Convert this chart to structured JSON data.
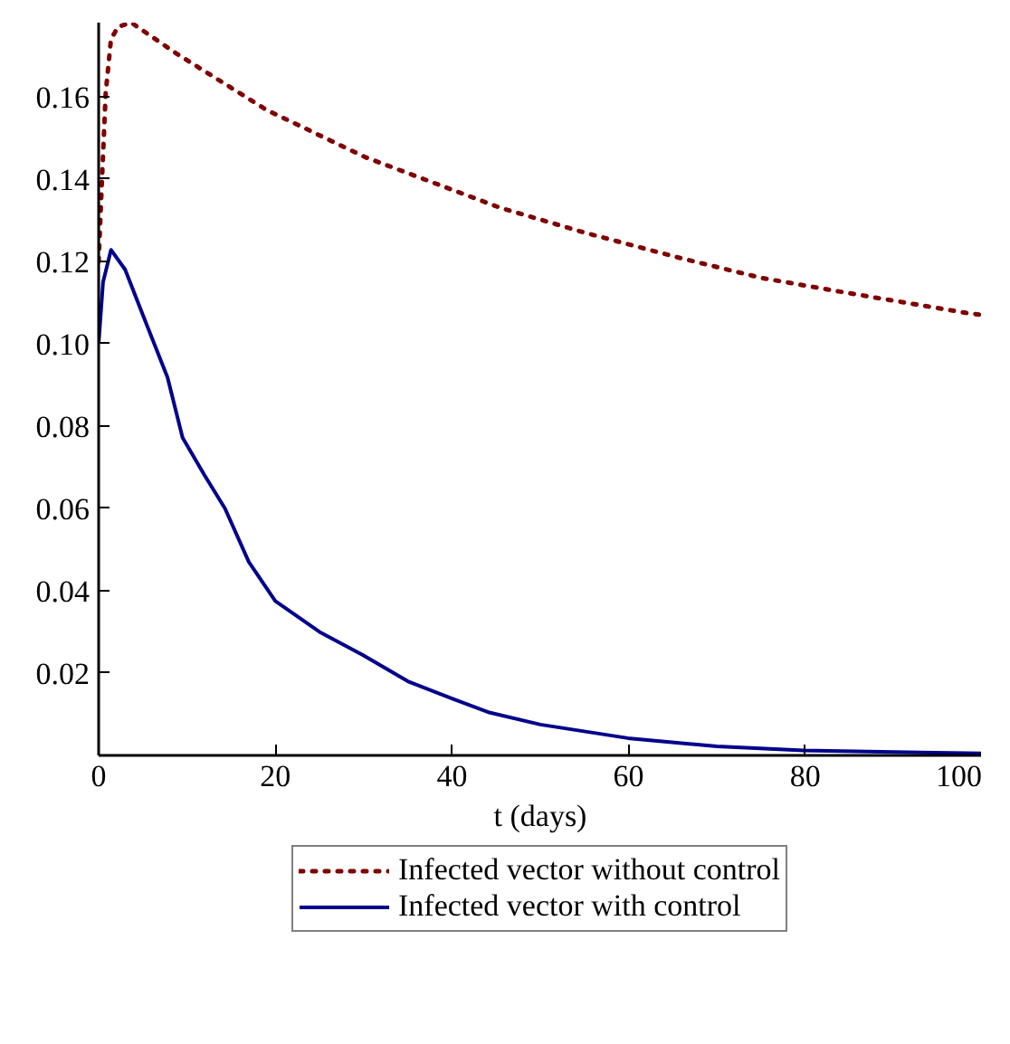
{
  "chart_data": {
    "type": "line",
    "xlabel": "t (days)",
    "xlim": [
      0,
      100
    ],
    "ylim": [
      0,
      0.178
    ],
    "xticks": [
      0,
      20,
      40,
      60,
      80,
      100
    ],
    "yticks": [
      0.02,
      0.04,
      0.06,
      0.08,
      {
        "value": 0.1,
        "label": "0.10"
      },
      0.12,
      0.14,
      0.16
    ],
    "grid": false,
    "legend": "bottom",
    "series": [
      {
        "name": "Infected vector without control",
        "color": "#800000",
        "line_style": "dotted",
        "x": [
          0,
          0.4,
          0.8,
          1.4,
          2.2,
          3.7,
          8.8,
          19,
          30.2,
          45.5,
          55,
          65.5,
          75,
          83.8,
          98.2,
          100
        ],
        "values": [
          0.12,
          0.141,
          0.161,
          0.174,
          0.177,
          0.178,
          0.1705,
          0.1568,
          0.1453,
          0.133,
          0.127,
          0.121,
          0.116,
          0.1127,
          0.1075,
          0.107
        ]
      },
      {
        "name": "Infected vector with control",
        "color": "#00008b",
        "line_style": "solid",
        "x": [
          0,
          0.5,
          1.4,
          3,
          5,
          7.8,
          9.5,
          12,
          14.3,
          17,
          20,
          25,
          29.9,
          35,
          40,
          44.1,
          50,
          59.9,
          70,
          79.8,
          90,
          100
        ],
        "values": [
          0.1,
          0.115,
          0.1228,
          0.118,
          0.107,
          0.0918,
          0.0772,
          0.068,
          0.06,
          0.047,
          0.0375,
          0.03,
          0.0244,
          0.018,
          0.0138,
          0.0105,
          0.0075,
          0.0042,
          0.0022,
          0.0012,
          0.0008,
          0.0005
        ]
      }
    ]
  }
}
